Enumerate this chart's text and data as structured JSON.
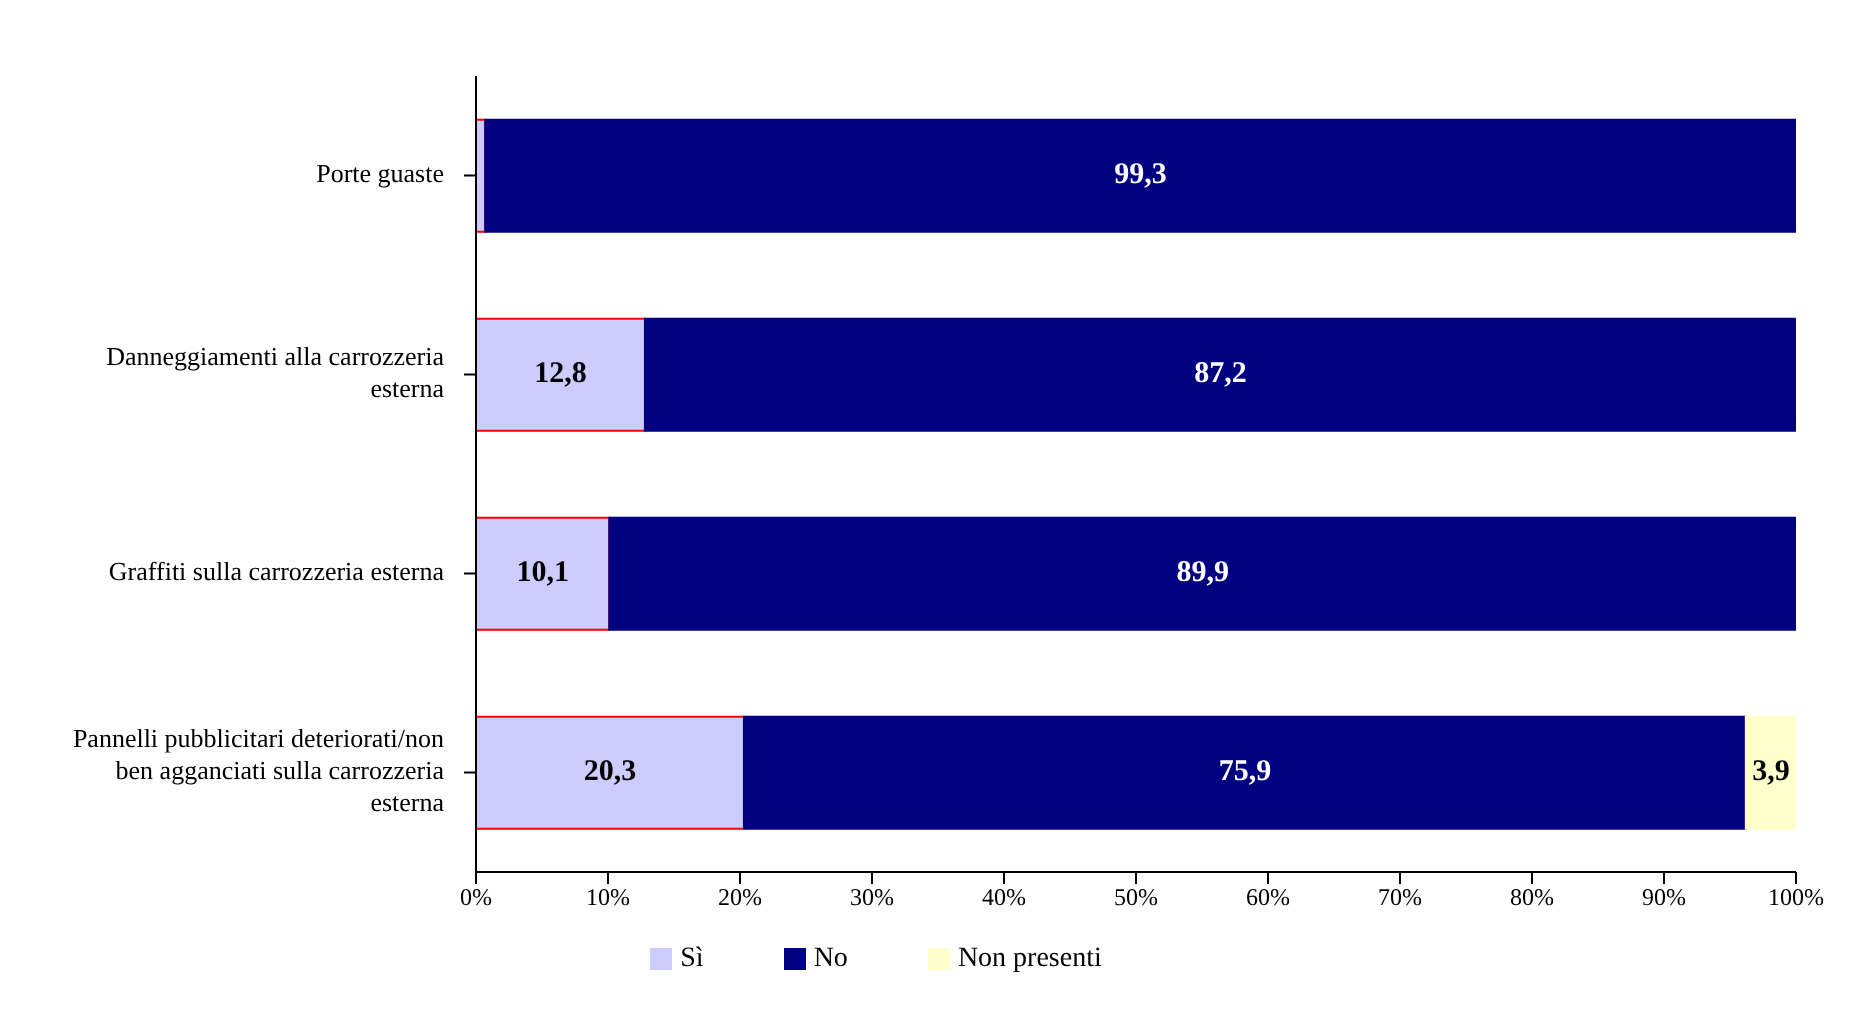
{
  "chart_data": {
    "type": "bar",
    "orientation": "horizontal",
    "stacked": true,
    "categories": [
      "Porte guaste",
      "Danneggiamenti alla carrozzeria esterna",
      "Graffiti sulla carrozzeria esterna",
      "Pannelli pubblicitari deteriorati/non ben agganciati sulla carrozzeria esterna"
    ],
    "series": [
      {
        "name": "Sì",
        "color": "#ccccff",
        "values": [
          0.7,
          12.8,
          10.1,
          20.3
        ],
        "value_labels": [
          null,
          "12,8",
          "10,1",
          "20,3"
        ]
      },
      {
        "name": "No",
        "color": "#000080",
        "values": [
          99.3,
          87.2,
          89.9,
          75.9
        ],
        "value_labels": [
          "99,3",
          "87,2",
          "89,9",
          "75,9"
        ]
      },
      {
        "name": "Non presenti",
        "color": "#ffffcc",
        "values": [
          null,
          null,
          null,
          3.9
        ],
        "value_labels": [
          null,
          null,
          null,
          "3,9"
        ]
      }
    ],
    "xlim": [
      0,
      100
    ],
    "xticks": [
      {
        "value": 0,
        "label": "0%"
      },
      {
        "value": 10,
        "label": "10%"
      },
      {
        "value": 20,
        "label": "20%"
      },
      {
        "value": 30,
        "label": "30%"
      },
      {
        "value": 40,
        "label": "40%"
      },
      {
        "value": 50,
        "label": "50%"
      },
      {
        "value": 60,
        "label": "60%"
      },
      {
        "value": 70,
        "label": "70%"
      },
      {
        "value": 80,
        "label": "80%"
      },
      {
        "value": 90,
        "label": "90%"
      },
      {
        "value": 100,
        "label": "100%"
      }
    ],
    "grid": false,
    "legend": "bottom"
  }
}
